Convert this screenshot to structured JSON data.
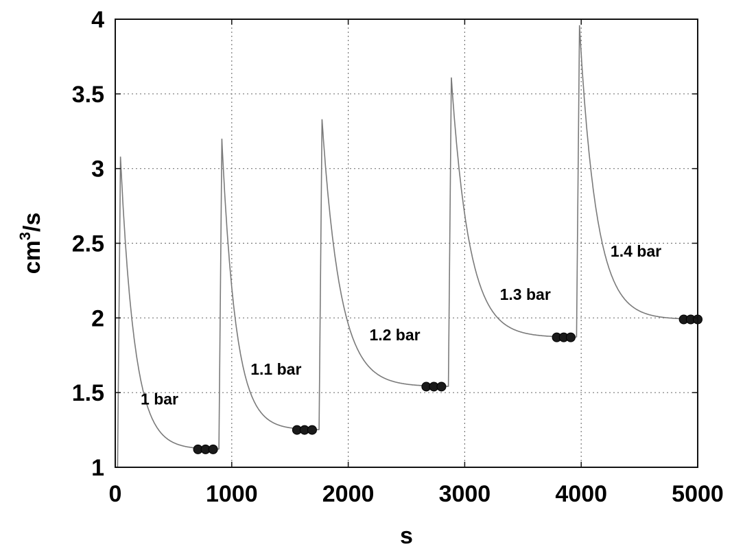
{
  "chart_data": {
    "type": "line",
    "title": "",
    "xlabel": "s",
    "ylabel": "cm",
    "ylabel_sup": "3",
    "ylabel_suffix": "/s",
    "xlim": [
      0,
      5000
    ],
    "ylim": [
      1,
      4
    ],
    "xticks": [
      0,
      1000,
      2000,
      3000,
      4000,
      5000
    ],
    "yticks": [
      1,
      1.5,
      2,
      2.5,
      3,
      3.5,
      4
    ],
    "xtick_labels": [
      "0",
      "1000",
      "2000",
      "3000",
      "4000",
      "5000"
    ],
    "ytick_labels": [
      "1",
      "1.5",
      "2",
      "2.5",
      "3",
      "3.5",
      "4"
    ],
    "grid": true,
    "steps": [
      {
        "label": "1 bar",
        "start": 20,
        "end": 890,
        "peak": 3.08,
        "plateau": 1.12,
        "markers_x": [
          710,
          775,
          840
        ],
        "label_x": 380,
        "label_y": 1.42
      },
      {
        "label": "1.1 bar",
        "start": 890,
        "end": 1750,
        "peak": 3.2,
        "plateau": 1.25,
        "markers_x": [
          1560,
          1625,
          1690
        ],
        "label_x": 1380,
        "label_y": 1.62
      },
      {
        "label": "1.2 bar",
        "start": 1750,
        "end": 2860,
        "peak": 3.33,
        "plateau": 1.54,
        "markers_x": [
          2670,
          2735,
          2800
        ],
        "label_x": 2400,
        "label_y": 1.85
      },
      {
        "label": "1.3 bar",
        "start": 2860,
        "end": 3960,
        "peak": 3.61,
        "plateau": 1.87,
        "markers_x": [
          3790,
          3850,
          3910
        ],
        "label_x": 3520,
        "label_y": 2.12
      },
      {
        "label": "1.4 bar",
        "start": 3960,
        "end": 5000,
        "peak": 3.96,
        "plateau": 1.99,
        "markers_x": [
          4880,
          4940,
          5000
        ],
        "label_x": 4470,
        "label_y": 2.41
      }
    ]
  }
}
